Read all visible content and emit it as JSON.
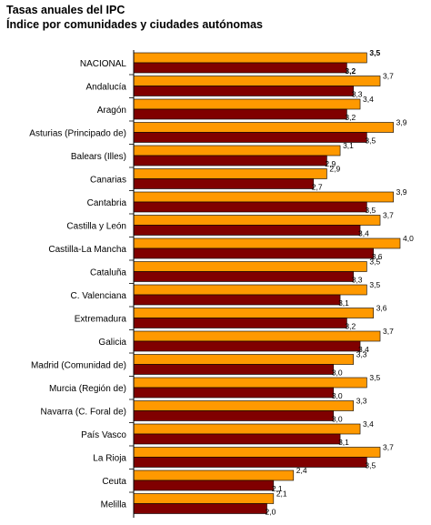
{
  "chart_data": {
    "type": "bar",
    "orientation": "horizontal",
    "title": "Tasas anuales del IPC",
    "subtitle": "Índice por comunidades y ciudades autónomas",
    "xlim": [
      0,
      4.0
    ],
    "grid": false,
    "legend": "none",
    "categories": [
      "NACIONAL",
      "Andalucía",
      "Aragón",
      "Asturias (Principado de)",
      "Balears (Illes)",
      "Canarias",
      "Cantabria",
      "Castilla y León",
      "Castilla-La Mancha",
      "Cataluña",
      "C. Valenciana",
      "Extremadura",
      "Galicia",
      "Madrid (Comunidad de)",
      "Murcia (Región de)",
      "Navarra (C. Foral de)",
      "País Vasco",
      "La Rioja",
      "Ceuta",
      "Melilla"
    ],
    "series": [
      {
        "color": "#FF9900",
        "values": [
          3.5,
          3.7,
          3.4,
          3.9,
          3.1,
          2.9,
          3.9,
          3.7,
          4.0,
          3.5,
          3.5,
          3.6,
          3.7,
          3.3,
          3.5,
          3.3,
          3.4,
          3.7,
          2.4,
          2.1
        ],
        "labels": [
          "3,5",
          "3,7",
          "3,4",
          "3,9",
          "3,1",
          "2,9",
          "3,9",
          "3,7",
          "4,0",
          "3,5",
          "3,5",
          "3,6",
          "3,7",
          "3,3",
          "3,5",
          "3,3",
          "3,4",
          "3,7",
          "2,4",
          "2,1"
        ]
      },
      {
        "color": "#800000",
        "values": [
          3.2,
          3.3,
          3.2,
          3.5,
          2.9,
          2.7,
          3.5,
          3.4,
          3.6,
          3.3,
          3.1,
          3.2,
          3.4,
          3.0,
          3.0,
          3.0,
          3.1,
          3.5,
          2.1,
          2.0
        ],
        "labels": [
          "3,2",
          "3,3",
          "3,2",
          "3,5",
          "2,9",
          "2,7",
          "3,5",
          "3,4",
          "3,6",
          "3,3",
          "3,1",
          "3,2",
          "3,4",
          "3,0",
          "3,0",
          "3,0",
          "3,1",
          "3,5",
          "2,1",
          "2,0"
        ]
      }
    ],
    "bold_category": "NACIONAL"
  }
}
